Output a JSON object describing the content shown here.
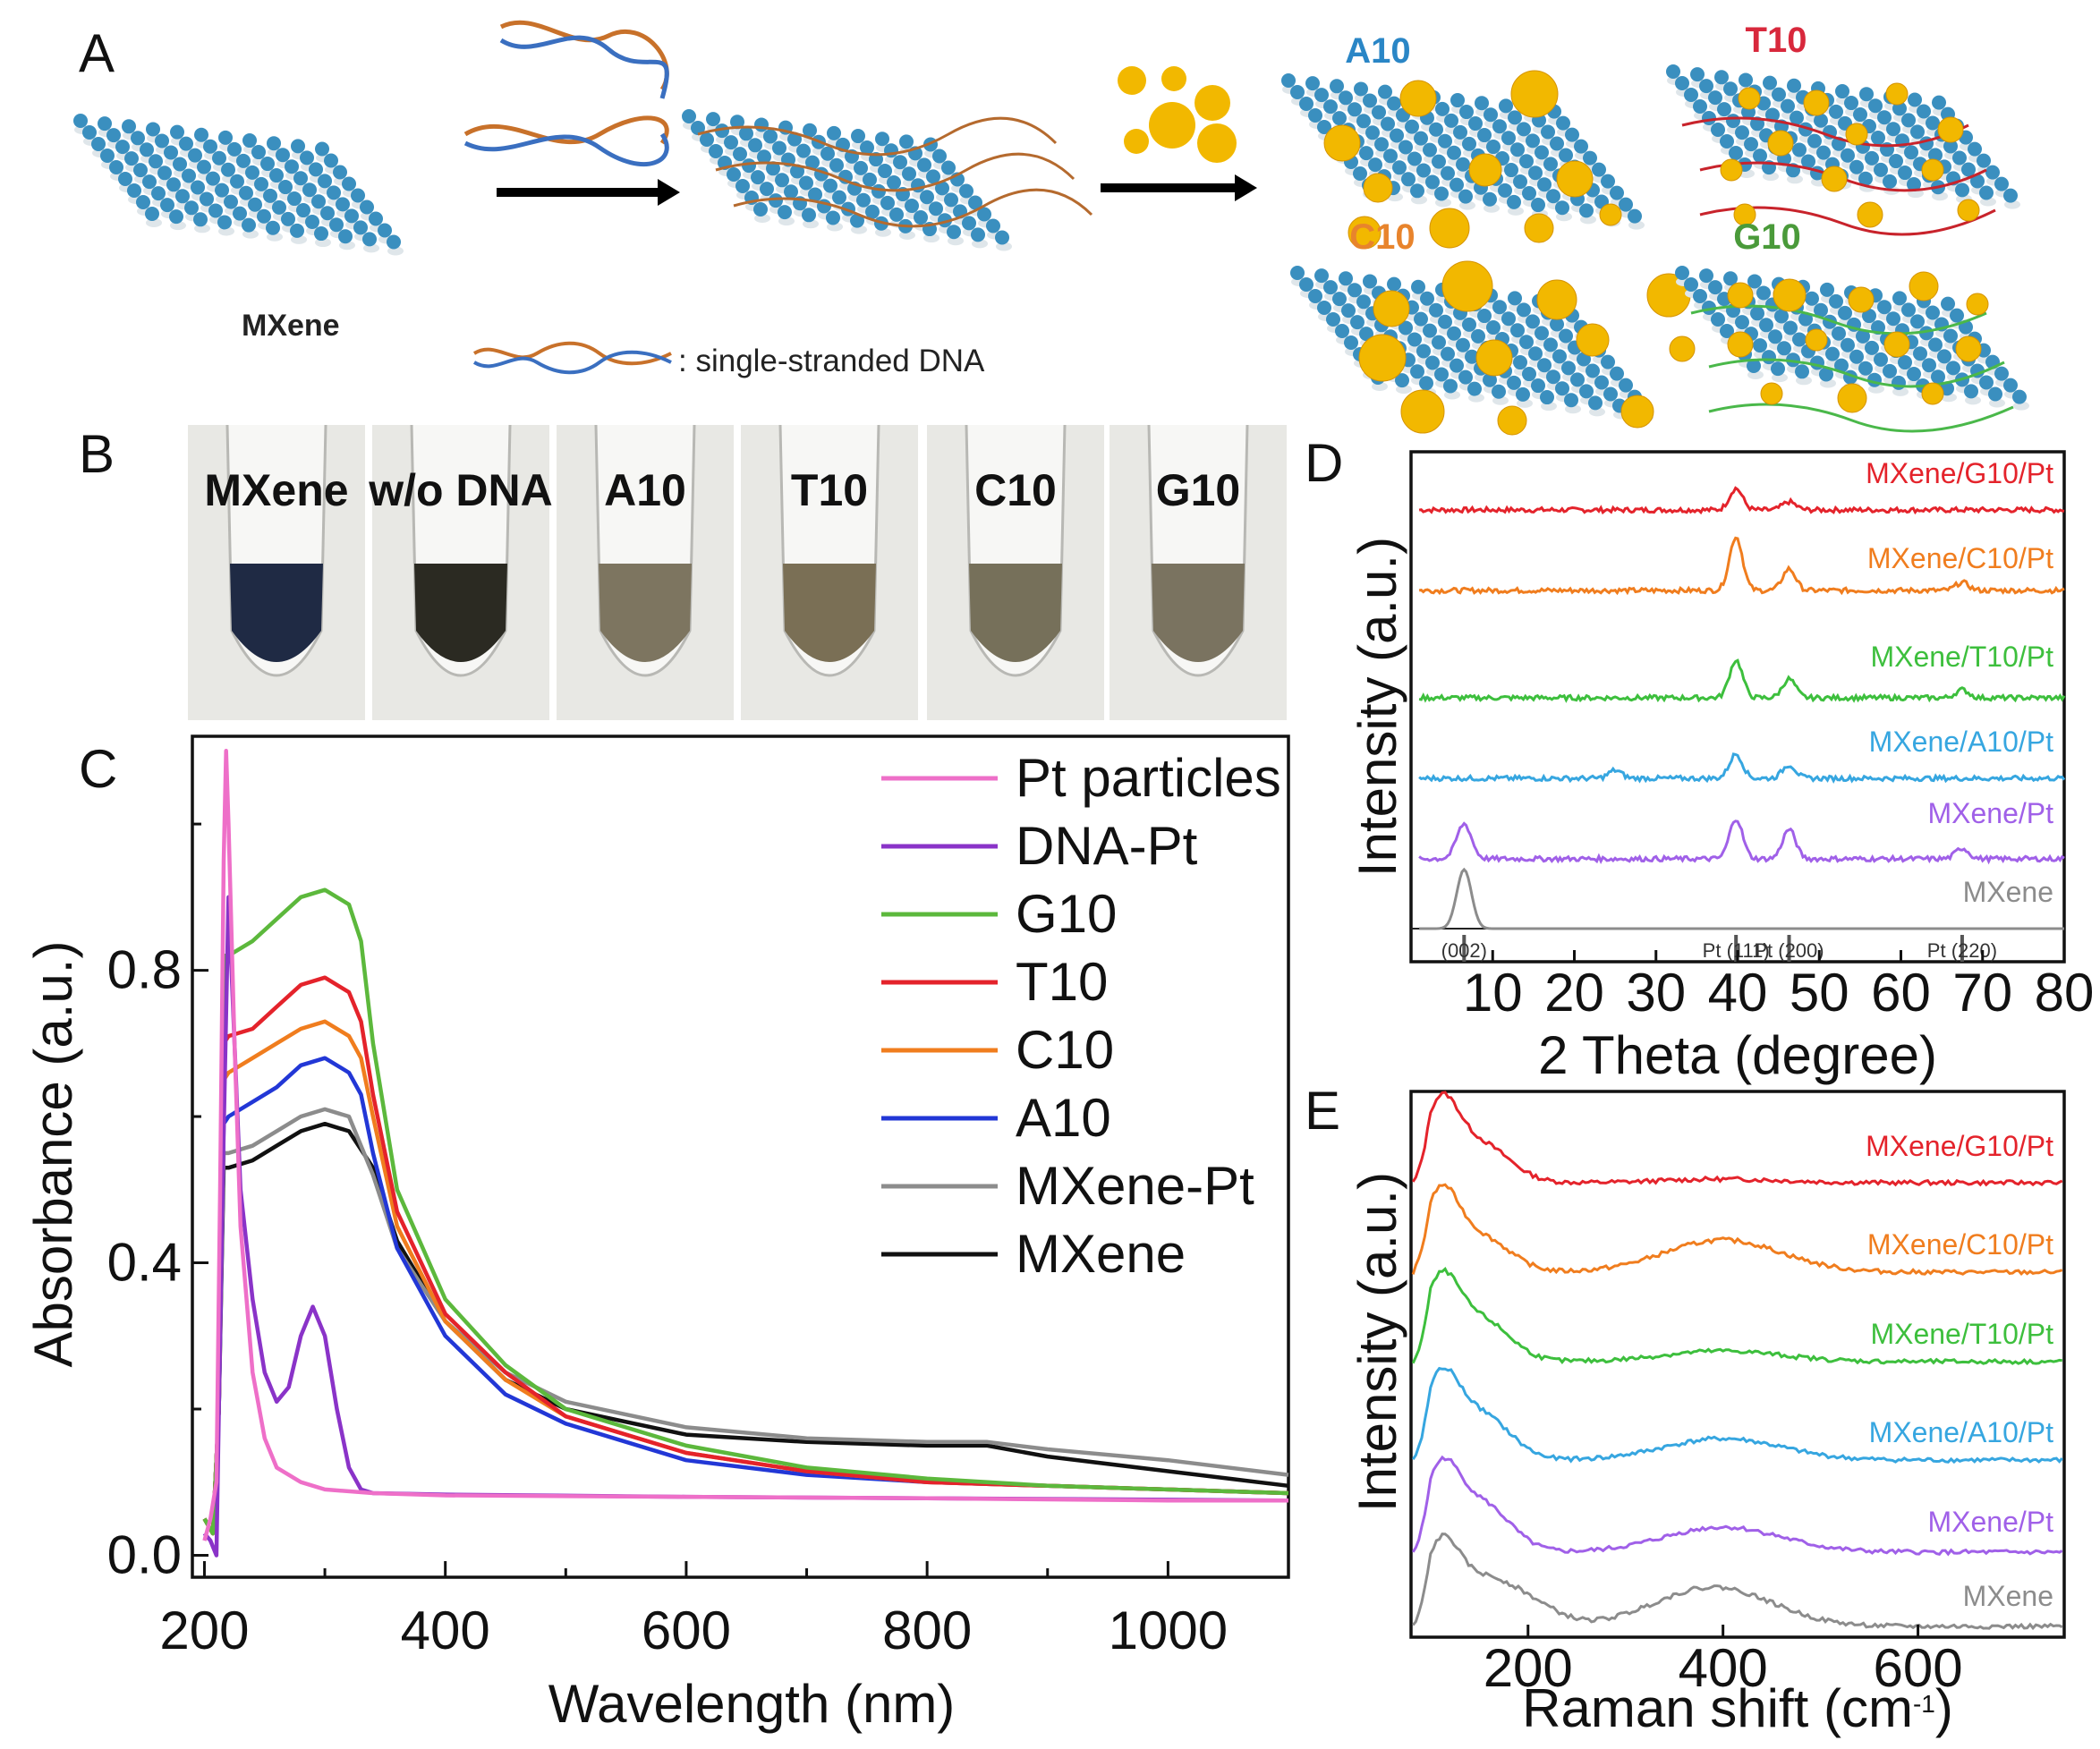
{
  "panel_letters": {
    "a": "A",
    "b": "B",
    "c": "C",
    "d": "D",
    "e": "E"
  },
  "schematic": {
    "mxene_label": "MXene",
    "ssdna_legend": ": single-stranded DNA",
    "products": [
      {
        "name": "A10",
        "color": "#2a86c6"
      },
      {
        "name": "T10",
        "color": "#d8283c"
      },
      {
        "name": "C10",
        "color": "#e8842c"
      },
      {
        "name": "G10",
        "color": "#4a9a3a"
      }
    ]
  },
  "photos": {
    "labels": [
      "MXene",
      "w/o DNA",
      "A10",
      "T10",
      "C10",
      "G10"
    ]
  },
  "chart_data": [
    {
      "panel": "C",
      "type": "line",
      "xlabel": "Wavelength (nm)",
      "ylabel": "Absorbance (a.u.)",
      "xlim": [
        190,
        1100
      ],
      "ylim": [
        -0.03,
        1.12
      ],
      "xticks": [
        "200",
        "400",
        "600",
        "800",
        "1000"
      ],
      "yticks": [
        "0.0",
        "0.4",
        "0.8"
      ],
      "series": [
        {
          "name": "Pt particles",
          "color": "#ee6fc8",
          "x": [
            200,
            205,
            210,
            213,
            216,
            218,
            220,
            225,
            230,
            240,
            250,
            260,
            280,
            300,
            340,
            400,
            600,
            800,
            1000,
            1100
          ],
          "y": [
            0.02,
            0.05,
            0.1,
            0.5,
            0.95,
            1.1,
            1.0,
            0.7,
            0.45,
            0.25,
            0.16,
            0.12,
            0.1,
            0.09,
            0.085,
            0.082,
            0.08,
            0.078,
            0.075,
            0.075
          ]
        },
        {
          "name": "DNA-Pt",
          "color": "#8a33c8",
          "x": [
            200,
            205,
            210,
            215,
            220,
            225,
            230,
            240,
            250,
            260,
            270,
            280,
            290,
            300,
            310,
            320,
            330,
            340,
            400,
            600,
            800,
            1000,
            1100
          ],
          "y": [
            0.03,
            0.02,
            0.0,
            0.5,
            0.9,
            0.7,
            0.5,
            0.35,
            0.25,
            0.21,
            0.23,
            0.3,
            0.34,
            0.3,
            0.2,
            0.12,
            0.09,
            0.085,
            0.083,
            0.08,
            0.078,
            0.076,
            0.075
          ]
        },
        {
          "name": "G10",
          "color": "#5cb83c",
          "x": [
            200,
            207,
            212,
            216,
            220,
            240,
            260,
            280,
            300,
            320,
            330,
            340,
            360,
            400,
            450,
            500,
            600,
            700,
            800,
            900,
            1000,
            1100
          ],
          "y": [
            0.05,
            0.03,
            0.2,
            0.82,
            0.82,
            0.84,
            0.87,
            0.9,
            0.91,
            0.89,
            0.84,
            0.7,
            0.5,
            0.35,
            0.26,
            0.2,
            0.15,
            0.12,
            0.105,
            0.095,
            0.09,
            0.085
          ]
        },
        {
          "name": "T10",
          "color": "#e4232b",
          "x": [
            200,
            207,
            212,
            216,
            220,
            240,
            260,
            280,
            300,
            320,
            330,
            340,
            360,
            400,
            450,
            500,
            600,
            700,
            800,
            900,
            1000,
            1100
          ],
          "y": [
            0.05,
            0.03,
            0.2,
            0.7,
            0.71,
            0.72,
            0.75,
            0.78,
            0.79,
            0.77,
            0.73,
            0.63,
            0.47,
            0.33,
            0.25,
            0.19,
            0.14,
            0.115,
            0.1,
            0.095,
            0.09,
            0.085
          ]
        },
        {
          "name": "C10",
          "color": "#f07d1e",
          "x": [
            200,
            207,
            212,
            216,
            220,
            240,
            260,
            280,
            300,
            320,
            330,
            340,
            360,
            400,
            450,
            500,
            600,
            700,
            800,
            900,
            1000,
            1100
          ],
          "y": [
            0.05,
            0.03,
            0.2,
            0.65,
            0.66,
            0.68,
            0.7,
            0.72,
            0.73,
            0.71,
            0.68,
            0.6,
            0.45,
            0.32,
            0.24,
            0.19,
            0.14,
            0.115,
            0.1,
            0.095,
            0.09,
            0.085
          ]
        },
        {
          "name": "A10",
          "color": "#2237d6",
          "x": [
            200,
            207,
            212,
            216,
            220,
            240,
            260,
            280,
            300,
            320,
            330,
            340,
            360,
            400,
            450,
            500,
            600,
            700,
            800,
            900,
            1000,
            1100
          ],
          "y": [
            0.05,
            0.03,
            0.2,
            0.59,
            0.6,
            0.62,
            0.64,
            0.67,
            0.68,
            0.66,
            0.63,
            0.55,
            0.42,
            0.3,
            0.22,
            0.18,
            0.13,
            0.11,
            0.1,
            0.095,
            0.09,
            0.085
          ]
        },
        {
          "name": "MXene-Pt",
          "color": "#8c8c8c",
          "x": [
            200,
            207,
            212,
            216,
            220,
            240,
            260,
            280,
            300,
            320,
            340,
            360,
            400,
            450,
            500,
            600,
            700,
            800,
            850,
            900,
            1000,
            1100
          ],
          "y": [
            0.05,
            0.03,
            0.2,
            0.55,
            0.55,
            0.56,
            0.58,
            0.6,
            0.61,
            0.6,
            0.52,
            0.42,
            0.32,
            0.25,
            0.21,
            0.175,
            0.16,
            0.155,
            0.155,
            0.145,
            0.13,
            0.11
          ]
        },
        {
          "name": "MXene",
          "color": "#111111",
          "x": [
            200,
            207,
            212,
            216,
            220,
            240,
            260,
            280,
            300,
            320,
            340,
            360,
            400,
            450,
            500,
            600,
            700,
            800,
            850,
            900,
            1000,
            1100
          ],
          "y": [
            0.05,
            0.03,
            0.2,
            0.53,
            0.53,
            0.54,
            0.56,
            0.58,
            0.59,
            0.58,
            0.53,
            0.43,
            0.32,
            0.24,
            0.2,
            0.165,
            0.155,
            0.15,
            0.15,
            0.135,
            0.115,
            0.095
          ]
        }
      ]
    },
    {
      "panel": "D",
      "type": "line",
      "xlabel": "2 Theta (degree)",
      "ylabel": "Intensity (a.u.)",
      "xlim": [
        0,
        80
      ],
      "xticks": [
        "10",
        "20",
        "30",
        "40",
        "50",
        "60",
        "70",
        "80"
      ],
      "reference_peaks": [
        {
          "label": "(002)",
          "x": 6.5
        },
        {
          "label": "Pt (111)",
          "x": 39.8
        },
        {
          "label": "Pt (200)",
          "x": 46.3
        },
        {
          "label": "Pt (220)",
          "x": 67.5
        }
      ],
      "series": [
        {
          "name": "MXene/G10/Pt",
          "color": "#e4232b",
          "peaks": [
            [
              39.8,
              0.4
            ],
            [
              46.3,
              0.15
            ]
          ]
        },
        {
          "name": "MXene/C10/Pt",
          "color": "#f07d1e",
          "peaks": [
            [
              39.8,
              1.0
            ],
            [
              46.3,
              0.4
            ],
            [
              67.5,
              0.15
            ]
          ]
        },
        {
          "name": "MXene/T10/Pt",
          "color": "#3dbf3d",
          "peaks": [
            [
              39.8,
              0.7
            ],
            [
              46.3,
              0.35
            ],
            [
              67.5,
              0.15
            ]
          ]
        },
        {
          "name": "MXene/A10/Pt",
          "color": "#36a6e0",
          "peaks": [
            [
              39.8,
              0.45
            ],
            [
              46.3,
              0.25
            ],
            [
              25,
              0.15
            ]
          ]
        },
        {
          "name": "MXene/Pt",
          "color": "#a060e8",
          "peaks": [
            [
              6.5,
              0.65
            ],
            [
              39.8,
              0.75
            ],
            [
              46.3,
              0.55
            ],
            [
              67.5,
              0.2
            ]
          ]
        },
        {
          "name": "MXene",
          "color": "#8c8c8c",
          "peaks": [
            [
              6.5,
              1.1
            ]
          ]
        }
      ]
    },
    {
      "panel": "E",
      "type": "line",
      "xlabel": "Raman shift (cm",
      "xlabel_sup": "-1",
      "xlabel_end": ")",
      "ylabel": "Intensity (a.u.)",
      "xlim": [
        80,
        750
      ],
      "xticks": [
        "200",
        "400",
        "600"
      ],
      "series": [
        {
          "name": "MXene/G10/Pt",
          "color": "#e4232b",
          "bands": [
            [
              110,
              1.0
            ],
            [
              150,
              0.55
            ],
            [
              400,
              0.05
            ]
          ]
        },
        {
          "name": "MXene/C10/Pt",
          "color": "#f07d1e",
          "bands": [
            [
              110,
              1.0
            ],
            [
              150,
              0.5
            ],
            [
              400,
              0.45
            ]
          ]
        },
        {
          "name": "MXene/T10/Pt",
          "color": "#3dbf3d",
          "bands": [
            [
              110,
              1.0
            ],
            [
              150,
              0.6
            ],
            [
              400,
              0.15
            ]
          ]
        },
        {
          "name": "MXene/A10/Pt",
          "color": "#36a6e0",
          "bands": [
            [
              110,
              1.0
            ],
            [
              150,
              0.65
            ],
            [
              400,
              0.3
            ]
          ]
        },
        {
          "name": "MXene/Pt",
          "color": "#a060e8",
          "bands": [
            [
              110,
              1.0
            ],
            [
              150,
              0.7
            ],
            [
              400,
              0.35
            ]
          ]
        },
        {
          "name": "MXene",
          "color": "#8c8c8c",
          "bands": [
            [
              110,
              1.0
            ],
            [
              150,
              0.6
            ],
            [
              200,
              0.3
            ],
            [
              390,
              0.55
            ]
          ]
        }
      ]
    }
  ]
}
